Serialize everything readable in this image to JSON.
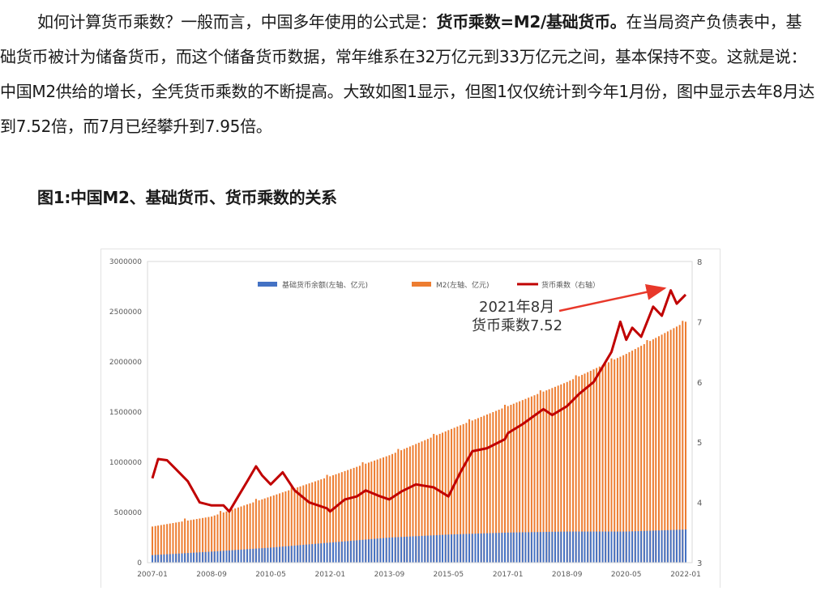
{
  "paragraph": {
    "part1": "如何计算货币乘数？一般而言，中国多年使用的公式是：",
    "formula": "货币乘数=M2/基础货币。",
    "part2": "在当局资产负债表中，基础货币被计为储备货币，而这个储备货币数据，常年维系在32万亿元到33万亿元之间，基本保持不变。这就是说：中国M2供给的增长，全凭货币乘数的不断提高。大致如图1显示，但图1仅仅统计到今年1月份，图中显示去年8月达到7.52倍，而7月已经攀升到7.95倍。"
  },
  "figure_caption": "图1:中国M2、基础货币、货币乘数的关系",
  "chart_data": {
    "type": "bar",
    "legend": [
      "基础货币余额(左轴、亿元)",
      "M2(左轴、亿元)",
      "货币乘数（右轴）"
    ],
    "legend_position": "top",
    "left_axis": {
      "ticks": [
        "0",
        "500000",
        "1000000",
        "1500000",
        "2000000",
        "2500000",
        "3000000"
      ],
      "range": [
        0,
        3000000
      ]
    },
    "right_axis": {
      "ticks": [
        "3",
        "4",
        "5",
        "6",
        "7",
        "8"
      ],
      "range": [
        3,
        8
      ]
    },
    "x_ticks": [
      "2007-01",
      "2008-09",
      "2010-05",
      "2012-01",
      "2013-09",
      "2015-05",
      "2017-01",
      "2018-09",
      "2020-05",
      "2022-01"
    ],
    "annotation": {
      "line1": "2021年8月",
      "line2": "货币乘数7.52"
    },
    "colors": {
      "base_money": "#4472c4",
      "m2": "#ed7d31",
      "multiplier": "#c00000",
      "annotation_arrow": "#e8382a"
    },
    "series": [
      {
        "name": "基础货币余额(左轴、亿元)",
        "x": [
          "2007-01",
          "2008-09",
          "2010-05",
          "2012-01",
          "2013-09",
          "2015-05",
          "2017-01",
          "2018-09",
          "2020-05",
          "2022-01"
        ],
        "values": [
          75000,
          110000,
          150000,
          200000,
          250000,
          280000,
          300000,
          310000,
          310000,
          330000
        ]
      },
      {
        "name": "M2(左轴、亿元)",
        "x": [
          "2007-01",
          "2008-09",
          "2010-05",
          "2012-01",
          "2013-09",
          "2015-05",
          "2017-01",
          "2018-09",
          "2020-05",
          "2022-01"
        ],
        "values": [
          360000,
          460000,
          660000,
          860000,
          1070000,
          1320000,
          1560000,
          1800000,
          2080000,
          2400000
        ]
      },
      {
        "name": "货币乘数（右轴）",
        "x": [
          "2007-01",
          "2007-03",
          "2007-06",
          "2007-09",
          "2008-01",
          "2008-05",
          "2008-09",
          "2009-01",
          "2009-03",
          "2009-06",
          "2009-09",
          "2009-12",
          "2010-02",
          "2010-05",
          "2010-09",
          "2011-01",
          "2011-06",
          "2011-12",
          "2012-01",
          "2012-06",
          "2012-10",
          "2013-01",
          "2013-06",
          "2013-09",
          "2014-01",
          "2014-06",
          "2014-12",
          "2015-05",
          "2015-09",
          "2016-01",
          "2016-06",
          "2016-12",
          "2017-01",
          "2017-06",
          "2018-01",
          "2018-04",
          "2018-09",
          "2019-01",
          "2019-06",
          "2019-12",
          "2020-03",
          "2020-05",
          "2020-07",
          "2020-10",
          "2021-02",
          "2021-05",
          "2021-08",
          "2021-10",
          "2022-01"
        ],
        "values": [
          4.4,
          4.72,
          4.7,
          4.55,
          4.35,
          4.0,
          3.95,
          3.95,
          3.85,
          4.1,
          4.35,
          4.6,
          4.45,
          4.3,
          4.5,
          4.2,
          4.0,
          3.9,
          3.85,
          4.05,
          4.1,
          4.2,
          4.1,
          4.05,
          4.18,
          4.3,
          4.25,
          4.1,
          4.5,
          4.85,
          4.9,
          5.05,
          5.15,
          5.3,
          5.55,
          5.45,
          5.6,
          5.8,
          6.0,
          6.5,
          7.0,
          6.7,
          6.9,
          6.75,
          7.25,
          7.1,
          7.52,
          7.3,
          7.45
        ]
      }
    ]
  }
}
